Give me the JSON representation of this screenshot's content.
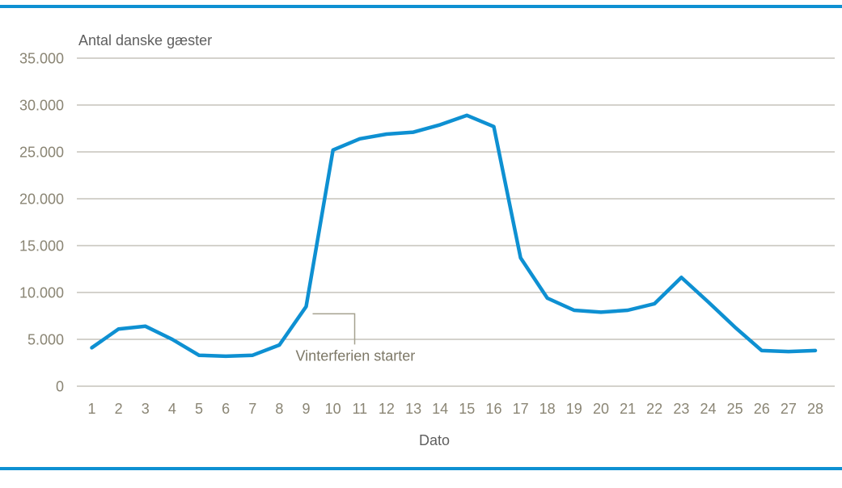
{
  "frame": {
    "background": "#ffffff",
    "border_color": "#0e90d2"
  },
  "chart_data": {
    "type": "line",
    "title": "Antal danske gæster",
    "xlabel": "Dato",
    "categories": [
      "1",
      "2",
      "3",
      "4",
      "5",
      "6",
      "7",
      "8",
      "9",
      "10",
      "11",
      "12",
      "13",
      "14",
      "15",
      "16",
      "17",
      "18",
      "19",
      "20",
      "21",
      "22",
      "23",
      "24",
      "25",
      "26",
      "27",
      "28"
    ],
    "values": [
      4100,
      6100,
      6400,
      5000,
      3300,
      3200,
      3300,
      4400,
      8500,
      25200,
      26400,
      26900,
      27100,
      27900,
      28900,
      27700,
      13700,
      9400,
      8100,
      7900,
      8100,
      8800,
      11600,
      9000,
      6300,
      3800,
      3700,
      3800
    ],
    "ylim": [
      0,
      35000
    ],
    "y_ticks": [
      0,
      5000,
      10000,
      15000,
      20000,
      25000,
      30000,
      35000
    ],
    "y_tick_labels": [
      "0",
      "5.000",
      "10.000",
      "15.000",
      "20.000",
      "25.000",
      "30.000",
      "35.000"
    ],
    "grid": "horizontal",
    "legend": "none",
    "annotation": {
      "text": "Vinterferien starter",
      "target_x": 9,
      "target_y": 8500
    },
    "colors": {
      "line": "#0e90d2",
      "gridline": "#a9a598",
      "tick_label": "#8a8574",
      "title": "#5f5f5f",
      "annotation_text": "#7d7867",
      "callout": "#a5a18f",
      "frame_border": "#0e90d2"
    }
  }
}
